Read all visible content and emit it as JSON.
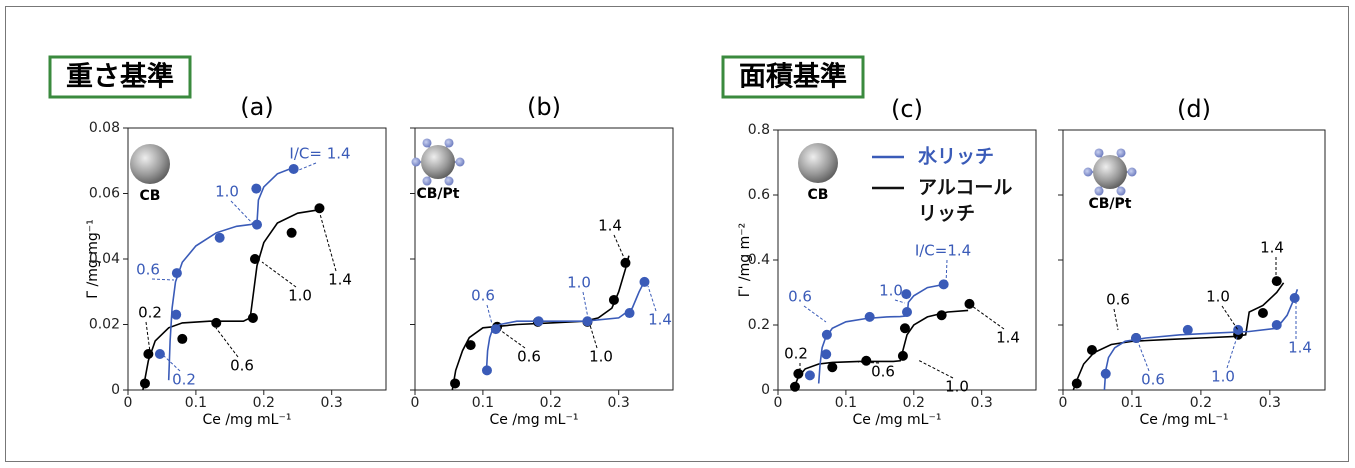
{
  "headers": [
    "重さ基準",
    "面積基準"
  ],
  "chart_data": [
    {
      "type": "scatter",
      "title": "(a)",
      "xlabel": "Ce /mg mL⁻¹",
      "ylabel": "Γ /mg mg⁻¹",
      "particle": "CB",
      "pt": false,
      "xlim": [
        0,
        0.38
      ],
      "xticks": [
        0,
        0.1,
        0.2,
        0.3
      ],
      "ylim": [
        0,
        0.08
      ],
      "yticks": [
        0,
        0.02,
        0.04,
        0.06,
        0.08
      ],
      "ytick_labels": true,
      "series": [
        {
          "color": "#000000",
          "x": [
            0.025,
            0.03,
            0.08,
            0.13,
            0.184,
            0.187,
            0.241,
            0.282
          ],
          "values": [
            0.002,
            0.011,
            0.0156,
            0.0205,
            0.022,
            0.04,
            0.048,
            0.0555
          ],
          "fit_x": [
            0.022,
            0.03,
            0.04,
            0.06,
            0.08,
            0.12,
            0.17,
            0.18,
            0.185,
            0.19,
            0.2,
            0.22,
            0.25,
            0.28
          ],
          "fit_y": [
            0,
            0.009,
            0.015,
            0.019,
            0.0205,
            0.021,
            0.021,
            0.022,
            0.03,
            0.038,
            0.045,
            0.051,
            0.054,
            0.055
          ]
        },
        {
          "color": "#3a5bb8",
          "x": [
            0.047,
            0.071,
            0.072,
            0.135,
            0.19,
            0.189,
            0.244
          ],
          "values": [
            0.011,
            0.023,
            0.0357,
            0.0465,
            0.0505,
            0.0615,
            0.0675
          ],
          "fit_x": [
            0.06,
            0.062,
            0.065,
            0.07,
            0.08,
            0.1,
            0.13,
            0.16,
            0.18,
            0.19,
            0.192,
            0.2,
            0.22,
            0.245
          ],
          "fit_y": [
            0.003,
            0.015,
            0.025,
            0.033,
            0.039,
            0.044,
            0.048,
            0.05,
            0.0505,
            0.051,
            0.058,
            0.062,
            0.066,
            0.068
          ]
        }
      ],
      "annotations": [
        {
          "text": "0.2",
          "color": "#000000"
        },
        {
          "text": "0.6",
          "color": "#000000"
        },
        {
          "text": "1.0",
          "color": "#000000"
        },
        {
          "text": "1.4",
          "color": "#000000"
        },
        {
          "text": "0.6",
          "color": "#3a5bb8"
        },
        {
          "text": "0.2",
          "color": "#3a5bb8"
        },
        {
          "text": "1.0",
          "color": "#3a5bb8"
        },
        {
          "text": "I/C= 1.4",
          "color": "#3a5bb8"
        }
      ]
    },
    {
      "type": "scatter",
      "title": "(b)",
      "xlabel": "Ce /mg mL⁻¹",
      "particle": "CB/Pt",
      "pt": true,
      "xlim": [
        0,
        0.38
      ],
      "xticks": [
        0,
        0.1,
        0.2,
        0.3
      ],
      "ylim": [
        0,
        0.08
      ],
      "yticks": [
        0,
        0.02,
        0.04,
        0.06,
        0.08
      ],
      "ytick_labels": false,
      "series": [
        {
          "color": "#000000",
          "x": [
            0.059,
            0.082,
            0.121,
            0.181,
            0.254,
            0.293,
            0.31
          ],
          "values": [
            0.002,
            0.0137,
            0.0193,
            0.0208,
            0.0208,
            0.0275,
            0.0388
          ],
          "fit_x": [
            0.055,
            0.06,
            0.07,
            0.08,
            0.1,
            0.15,
            0.2,
            0.25,
            0.27,
            0.29,
            0.3,
            0.31,
            0.315
          ],
          "fit_y": [
            0,
            0.006,
            0.012,
            0.016,
            0.019,
            0.02,
            0.0205,
            0.021,
            0.022,
            0.025,
            0.03,
            0.037,
            0.041
          ]
        },
        {
          "color": "#3a5bb8",
          "x": [
            0.106,
            0.119,
            0.182,
            0.254,
            0.316,
            0.338
          ],
          "values": [
            0.006,
            0.0186,
            0.021,
            0.021,
            0.0235,
            0.033
          ],
          "fit_x": [
            0.105,
            0.107,
            0.11,
            0.115,
            0.125,
            0.15,
            0.2,
            0.25,
            0.3,
            0.32,
            0.33,
            0.34
          ],
          "fit_y": [
            0.005,
            0.012,
            0.016,
            0.019,
            0.02,
            0.021,
            0.021,
            0.021,
            0.022,
            0.025,
            0.03,
            0.034
          ]
        }
      ],
      "annotations": [
        {
          "text": "0.6",
          "color": "#3a5bb8"
        },
        {
          "text": "1.0",
          "color": "#3a5bb8"
        },
        {
          "text": "1.4",
          "color": "#3a5bb8"
        },
        {
          "text": "0.6",
          "color": "#000000"
        },
        {
          "text": "1.0",
          "color": "#000000"
        },
        {
          "text": "1.4",
          "color": "#000000"
        }
      ]
    },
    {
      "type": "scatter",
      "title": "(c)",
      "xlabel": "Ce /mg mL⁻¹",
      "ylabel": "Γ' /mg m⁻²",
      "particle": "CB",
      "pt": false,
      "xlim": [
        0,
        0.38
      ],
      "xticks": [
        0,
        0.1,
        0.2,
        0.3
      ],
      "ylim": [
        0,
        0.8
      ],
      "yticks": [
        0,
        0.2,
        0.4,
        0.6,
        0.8
      ],
      "ytick_labels": true,
      "legend": [
        {
          "label": [
            "水リッチ"
          ],
          "color": "#3a5bb8"
        },
        {
          "label": [
            "アルコール",
            "リッチ"
          ],
          "color": "#111111"
        }
      ],
      "series": [
        {
          "color": "#000000",
          "x": [
            0.025,
            0.03,
            0.08,
            0.13,
            0.184,
            0.187,
            0.241,
            0.282
          ],
          "values": [
            0.01,
            0.05,
            0.07,
            0.09,
            0.105,
            0.19,
            0.23,
            0.265
          ],
          "fit_x": [
            0.022,
            0.03,
            0.04,
            0.06,
            0.08,
            0.12,
            0.17,
            0.18,
            0.185,
            0.19,
            0.2,
            0.22,
            0.25,
            0.28
          ],
          "fit_y": [
            0,
            0.04,
            0.065,
            0.08,
            0.085,
            0.088,
            0.088,
            0.09,
            0.13,
            0.17,
            0.2,
            0.225,
            0.24,
            0.245
          ]
        },
        {
          "color": "#3a5bb8",
          "x": [
            0.047,
            0.071,
            0.072,
            0.135,
            0.19,
            0.189,
            0.244
          ],
          "values": [
            0.045,
            0.11,
            0.17,
            0.225,
            0.24,
            0.295,
            0.325
          ],
          "fit_x": [
            0.06,
            0.062,
            0.065,
            0.07,
            0.08,
            0.1,
            0.13,
            0.16,
            0.18,
            0.19,
            0.192,
            0.2,
            0.22,
            0.245
          ],
          "fit_y": [
            0.02,
            0.08,
            0.13,
            0.16,
            0.19,
            0.21,
            0.22,
            0.225,
            0.226,
            0.228,
            0.27,
            0.29,
            0.315,
            0.325
          ]
        }
      ],
      "annotations": [
        {
          "text": "0.2",
          "color": "#000000"
        },
        {
          "text": "0.6",
          "color": "#000000"
        },
        {
          "text": "1.0",
          "color": "#000000"
        },
        {
          "text": "1.4",
          "color": "#000000"
        },
        {
          "text": "0.6",
          "color": "#3a5bb8"
        },
        {
          "text": "1.0",
          "color": "#3a5bb8"
        },
        {
          "text": "I/C=1.4",
          "color": "#3a5bb8"
        }
      ]
    },
    {
      "type": "scatter",
      "title": "(d)",
      "xlabel": "Ce /mg mL⁻¹",
      "particle": "CB/Pt",
      "pt": true,
      "xlim": [
        0,
        0.38
      ],
      "xticks": [
        0,
        0.1,
        0.2,
        0.3
      ],
      "ylim": [
        0,
        0.8
      ],
      "yticks": [
        0,
        0.2,
        0.4,
        0.6,
        0.8
      ],
      "ytick_labels": false,
      "series": [
        {
          "color": "#000000",
          "x": [
            0.02,
            0.042,
            0.106,
            0.254,
            0.29,
            0.31
          ],
          "values": [
            0.02,
            0.123,
            0.16,
            0.17,
            0.237,
            0.335
          ],
          "fit_x": [
            0.015,
            0.02,
            0.03,
            0.045,
            0.07,
            0.1,
            0.15,
            0.2,
            0.25,
            0.265,
            0.27,
            0.29,
            0.31,
            0.32
          ],
          "fit_y": [
            0,
            0.03,
            0.08,
            0.115,
            0.14,
            0.15,
            0.155,
            0.16,
            0.165,
            0.17,
            0.24,
            0.26,
            0.3,
            0.33
          ]
        },
        {
          "color": "#3a5bb8",
          "x": [
            0.062,
            0.106,
            0.181,
            0.254,
            0.31,
            0.336
          ],
          "values": [
            0.05,
            0.16,
            0.185,
            0.185,
            0.2,
            0.283
          ],
          "fit_x": [
            0.06,
            0.062,
            0.066,
            0.075,
            0.09,
            0.12,
            0.17,
            0.22,
            0.27,
            0.31,
            0.325,
            0.335,
            0.34
          ],
          "fit_y": [
            0,
            0.06,
            0.1,
            0.13,
            0.15,
            0.16,
            0.17,
            0.175,
            0.18,
            0.19,
            0.23,
            0.28,
            0.31
          ]
        }
      ],
      "annotations": [
        {
          "text": "0.6",
          "color": "#000000"
        },
        {
          "text": "1.0",
          "color": "#000000"
        },
        {
          "text": "1.4",
          "color": "#000000"
        },
        {
          "text": "0.6",
          "color": "#3a5bb8"
        },
        {
          "text": "1.0",
          "color": "#3a5bb8"
        },
        {
          "text": "1.4",
          "color": "#3a5bb8"
        }
      ]
    }
  ]
}
